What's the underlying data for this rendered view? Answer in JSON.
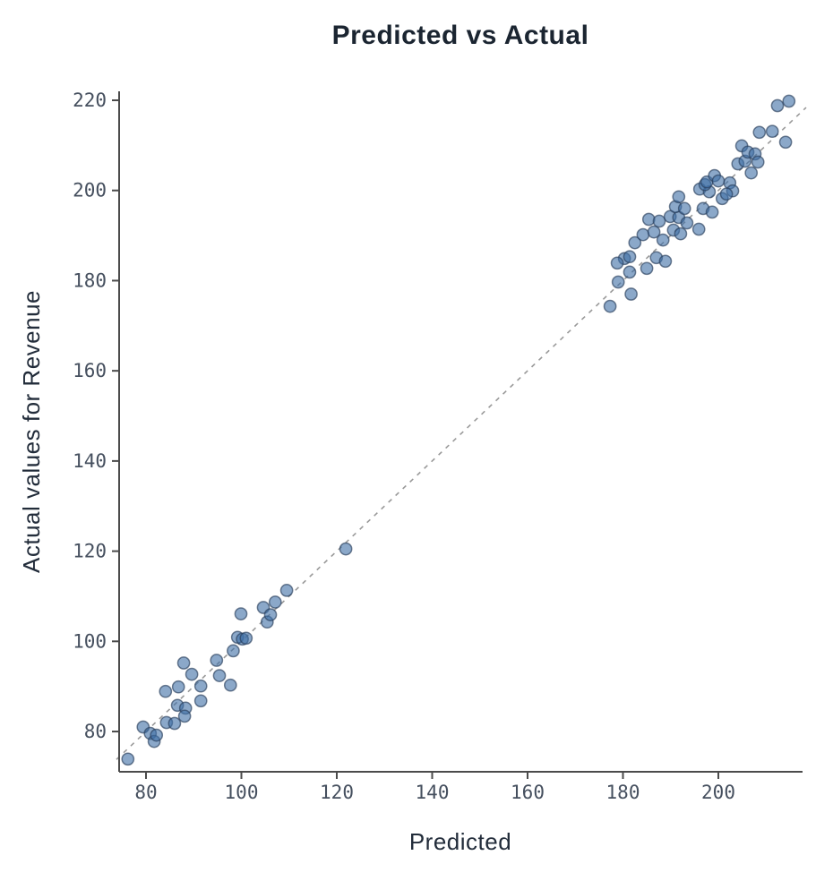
{
  "chart_data": {
    "type": "scatter",
    "title": "Predicted vs Actual",
    "xlabel": "Predicted",
    "ylabel": "Actual values for Revenue",
    "x_ticks": [
      80,
      100,
      120,
      140,
      160,
      180,
      200
    ],
    "y_ticks": [
      80,
      100,
      120,
      140,
      160,
      180,
      200,
      220
    ],
    "xlim": [
      74.4,
      217.7
    ],
    "ylim": [
      71.1,
      222.0
    ],
    "grid": false,
    "legend": "none",
    "reference_line": {
      "equation": "y = x",
      "style": "dashed",
      "from_xy": 73.8,
      "to_xy": 218.4
    },
    "series": [
      {
        "name": "predicted-vs-actual-points",
        "points": [
          [
            76.2,
            73.9
          ],
          [
            79.4,
            81.0
          ],
          [
            80.9,
            79.6
          ],
          [
            81.7,
            77.8
          ],
          [
            82.2,
            79.2
          ],
          [
            84.3,
            82.0
          ],
          [
            86.0,
            81.8
          ],
          [
            84.1,
            88.9
          ],
          [
            86.8,
            89.9
          ],
          [
            86.6,
            85.8
          ],
          [
            88.3,
            85.2
          ],
          [
            88.1,
            83.4
          ],
          [
            87.9,
            95.2
          ],
          [
            89.6,
            92.7
          ],
          [
            91.5,
            90.1
          ],
          [
            91.5,
            86.8
          ],
          [
            94.8,
            95.8
          ],
          [
            95.4,
            92.4
          ],
          [
            97.7,
            90.3
          ],
          [
            98.3,
            97.9
          ],
          [
            99.2,
            100.9
          ],
          [
            100.2,
            100.5
          ],
          [
            101.0,
            100.7
          ],
          [
            99.9,
            106.1
          ],
          [
            104.6,
            107.5
          ],
          [
            105.4,
            104.3
          ],
          [
            106.1,
            105.9
          ],
          [
            107.1,
            108.7
          ],
          [
            109.5,
            111.3
          ],
          [
            121.9,
            120.5
          ],
          [
            177.3,
            174.3
          ],
          [
            181.7,
            177.0
          ],
          [
            179.0,
            179.7
          ],
          [
            180.3,
            184.9
          ],
          [
            181.4,
            185.3
          ],
          [
            178.8,
            183.9
          ],
          [
            181.4,
            181.9
          ],
          [
            185.0,
            182.7
          ],
          [
            182.5,
            188.4
          ],
          [
            187.0,
            185.1
          ],
          [
            188.9,
            184.3
          ],
          [
            184.2,
            190.2
          ],
          [
            186.5,
            190.8
          ],
          [
            188.4,
            189.0
          ],
          [
            185.4,
            193.6
          ],
          [
            187.6,
            193.2
          ],
          [
            189.9,
            194.2
          ],
          [
            191.7,
            194.0
          ],
          [
            190.6,
            191.2
          ],
          [
            192.1,
            190.4
          ],
          [
            193.4,
            192.8
          ],
          [
            195.9,
            191.4
          ],
          [
            191.0,
            196.4
          ],
          [
            192.9,
            196.0
          ],
          [
            196.8,
            196.0
          ],
          [
            198.7,
            195.2
          ],
          [
            191.7,
            198.6
          ],
          [
            196.1,
            200.3
          ],
          [
            198.1,
            199.7
          ],
          [
            197.2,
            201.3
          ],
          [
            197.6,
            201.9
          ],
          [
            199.2,
            203.3
          ],
          [
            200.0,
            202.1
          ],
          [
            200.8,
            198.2
          ],
          [
            202.4,
            201.7
          ],
          [
            203.0,
            199.9
          ],
          [
            201.7,
            199.2
          ],
          [
            204.1,
            205.9
          ],
          [
            205.6,
            206.5
          ],
          [
            204.9,
            209.9
          ],
          [
            206.2,
            208.5
          ],
          [
            207.7,
            208.1
          ],
          [
            208.3,
            206.3
          ],
          [
            206.9,
            203.9
          ],
          [
            208.6,
            212.9
          ],
          [
            211.3,
            213.1
          ],
          [
            214.1,
            210.7
          ],
          [
            212.4,
            218.8
          ],
          [
            214.8,
            219.8
          ]
        ]
      }
    ],
    "colors": {
      "point_fill": "rgba(61,110,165,0.6)",
      "point_edge": "rgba(40,62,90,0.65)",
      "reference_line": "#999999",
      "spine": "#4b4b4b",
      "tick_label": "#454f5e",
      "title": "#1b2531",
      "axis_label": "#222c3a",
      "background": "#ffffff"
    }
  }
}
